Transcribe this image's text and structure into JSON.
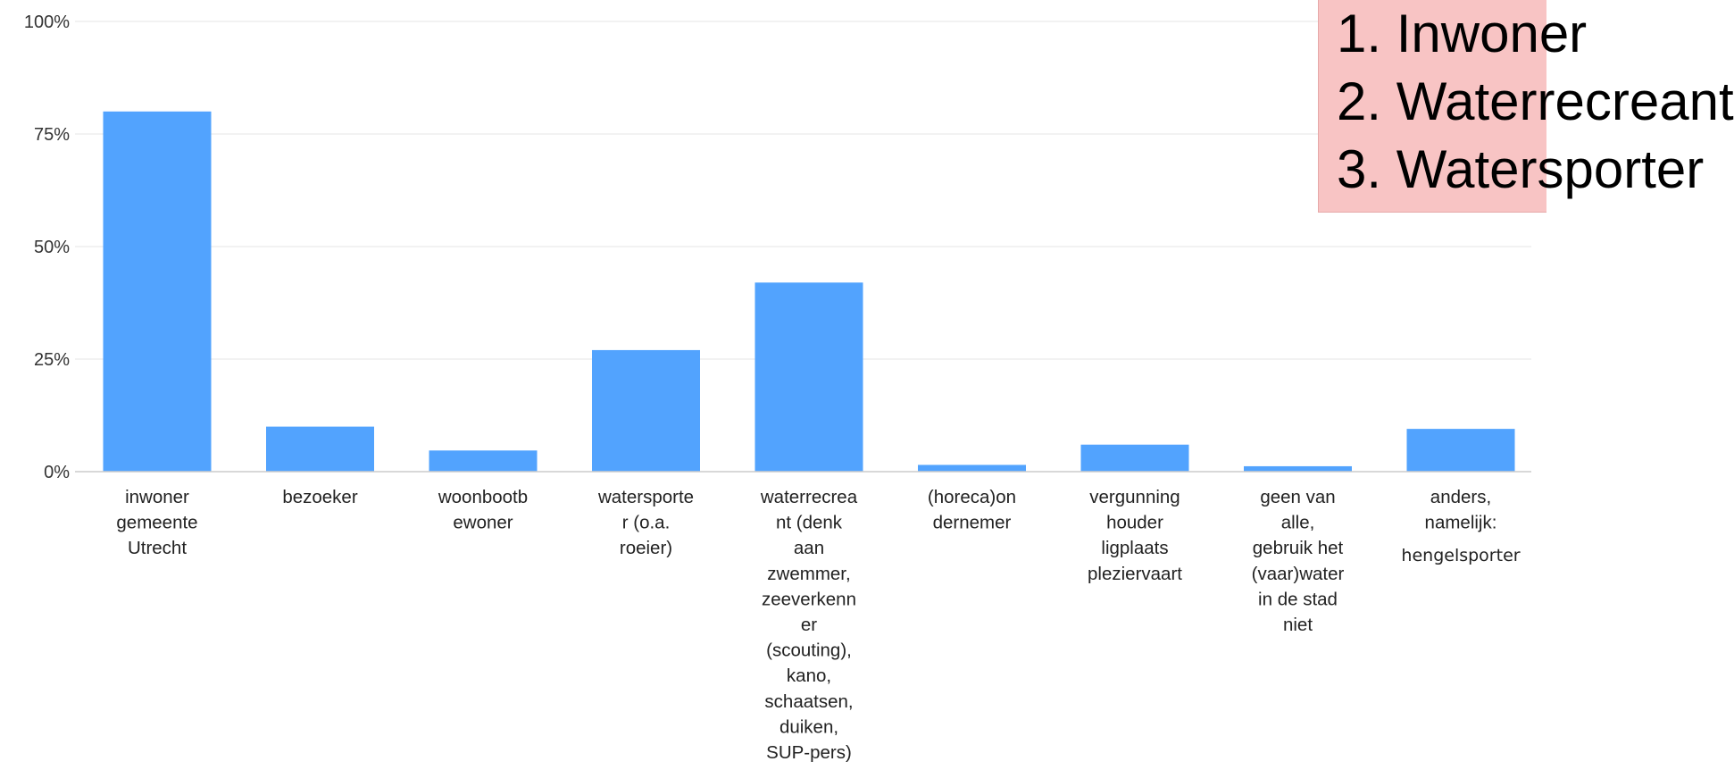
{
  "chart_data": {
    "type": "bar",
    "categories": [
      [
        "inwoner",
        "gemeente",
        "Utrecht"
      ],
      [
        "bezoeker"
      ],
      [
        "woonbootb",
        "ewoner"
      ],
      [
        "watersporte",
        "r (o.a.",
        "roeier)"
      ],
      [
        "waterrecrea",
        "nt (denk",
        "aan",
        "zwemmer,",
        "zeeverkenn",
        "er",
        "(scouting),",
        "kano,",
        "schaatsen,",
        "duiken,",
        "SUP-pers)"
      ],
      [
        "(horeca)on",
        "dernemer"
      ],
      [
        "vergunning",
        "houder",
        "ligplaats",
        "pleziervaart"
      ],
      [
        "geen van",
        "alle,",
        "gebruik het",
        "(vaar)water",
        "in de stad",
        "niet"
      ],
      [
        "anders,",
        "namelijk:",
        "hengelsporter"
      ]
    ],
    "values": [
      80,
      10,
      4.7,
      27,
      42,
      1.5,
      6,
      1.2,
      9.5
    ],
    "unit": "%",
    "ylim": [
      0,
      100
    ],
    "yticks": [
      "0%",
      "25%",
      "50%",
      "75%",
      "100%"
    ],
    "ytick_values": [
      0,
      25,
      50,
      75,
      100
    ],
    "grid": true,
    "bar_color": "#52a3fe",
    "title": "",
    "xlabel": "",
    "ylabel": ""
  },
  "callout": {
    "lines": [
      "1. Inwoner",
      "2. Waterrecreant",
      "3. Watersporter"
    ],
    "background": "#f8c4c4"
  }
}
